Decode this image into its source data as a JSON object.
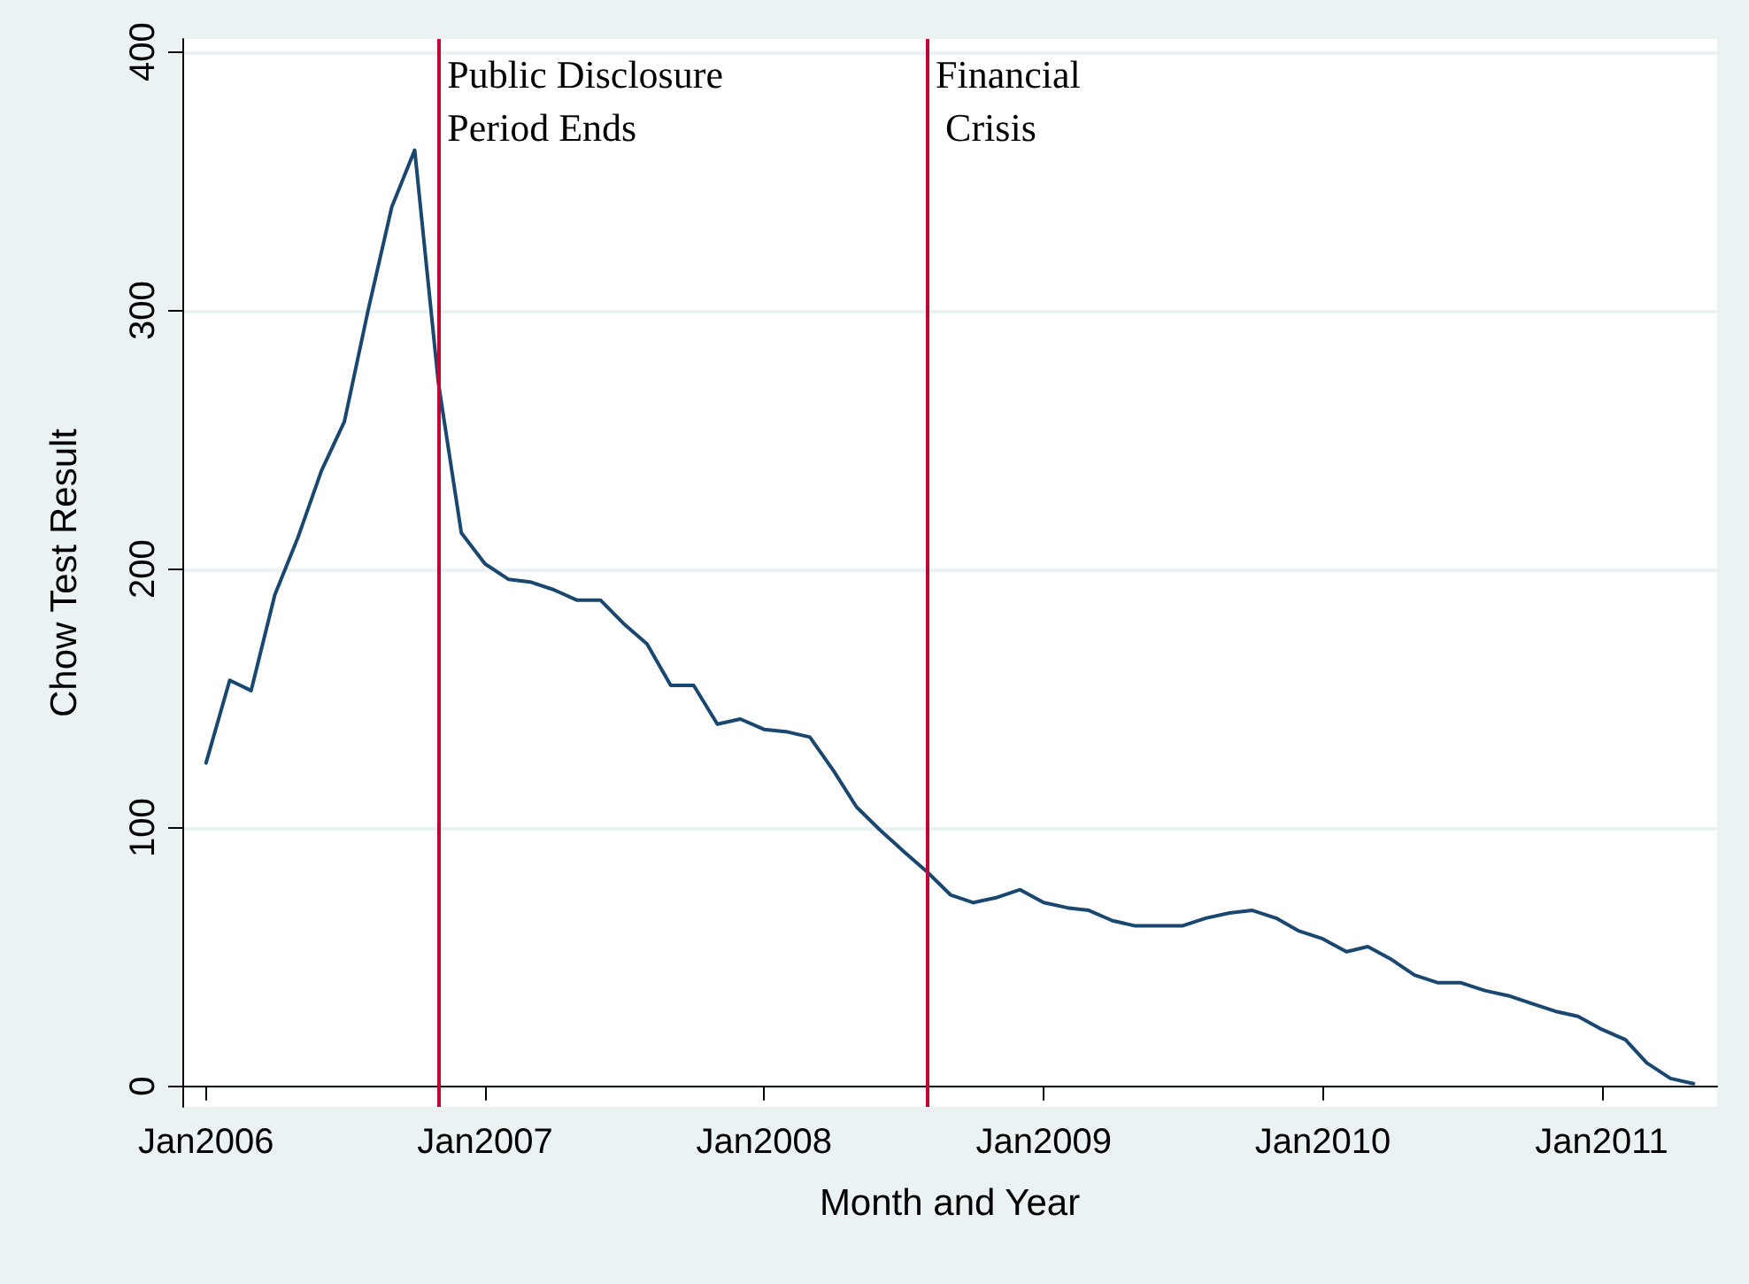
{
  "chart_data": {
    "type": "line",
    "xlabel": "Month and Year",
    "ylabel": "Chow Test Result",
    "x": [
      "2006-01",
      "2006-02",
      "2006-03",
      "2006-04",
      "2006-05",
      "2006-06",
      "2006-07",
      "2006-08",
      "2006-09",
      "2006-10",
      "2006-11",
      "2006-12",
      "2007-01",
      "2007-02",
      "2007-03",
      "2007-04",
      "2007-05",
      "2007-06",
      "2007-07",
      "2007-08",
      "2007-09",
      "2007-10",
      "2007-11",
      "2007-12",
      "2008-01",
      "2008-02",
      "2008-03",
      "2008-04",
      "2008-05",
      "2008-06",
      "2008-07",
      "2008-08",
      "2008-09",
      "2008-10",
      "2008-11",
      "2008-12",
      "2009-01",
      "2009-02",
      "2009-03",
      "2009-04",
      "2009-05",
      "2009-06",
      "2009-07",
      "2009-08",
      "2009-09",
      "2009-10",
      "2009-11",
      "2009-12",
      "2010-01",
      "2010-02",
      "2010-03",
      "2010-04",
      "2010-05",
      "2010-06",
      "2010-07",
      "2010-08",
      "2010-09",
      "2010-10",
      "2010-11",
      "2010-12",
      "2011-01",
      "2011-02",
      "2011-03",
      "2011-04",
      "2011-05"
    ],
    "series": [
      {
        "color": "#1a476f",
        "values": [
          125,
          157,
          153,
          190,
          212,
          238,
          257,
          300,
          340,
          362,
          272,
          214,
          202,
          196,
          195,
          192,
          188,
          188,
          179,
          171,
          155,
          155,
          140,
          142,
          138,
          137,
          135,
          122,
          108,
          99,
          91,
          83,
          74,
          71,
          73,
          76,
          71,
          69,
          68,
          64,
          62,
          62,
          62,
          65,
          67,
          68,
          65,
          60,
          57,
          52,
          54,
          49,
          43,
          40,
          40,
          37,
          35,
          32,
          29,
          27,
          22,
          18,
          9,
          3,
          1
        ]
      }
    ],
    "xlim": [
      "2005-12",
      "2011-06"
    ],
    "xticks": [
      {
        "value": "2006-01",
        "label": "Jan2006"
      },
      {
        "value": "2007-01",
        "label": "Jan2007"
      },
      {
        "value": "2008-01",
        "label": "Jan2008"
      },
      {
        "value": "2009-01",
        "label": "Jan2009"
      },
      {
        "value": "2010-01",
        "label": "Jan2010"
      },
      {
        "value": "2011-01",
        "label": "Jan2011"
      }
    ],
    "ylim": [
      -8,
      405
    ],
    "yticks": [
      0,
      100,
      200,
      300,
      400
    ],
    "ref_lines": [
      {
        "axis": "x",
        "value": "2006-11",
        "label": "Public Disclosure\nPeriod Ends",
        "color": "#c10534"
      },
      {
        "axis": "x",
        "value": "2008-08",
        "label": "Financial\n Crisis",
        "color": "#c10534"
      }
    ],
    "grid": "y",
    "marker": "none",
    "line_style": "solid"
  }
}
